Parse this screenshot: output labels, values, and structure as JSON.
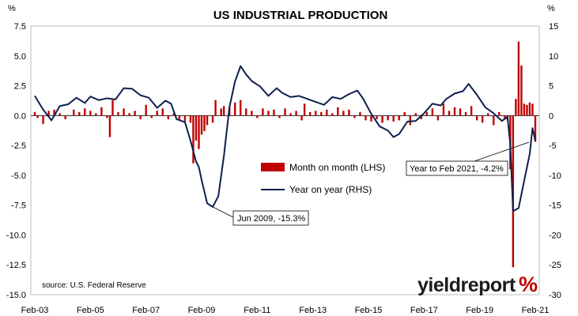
{
  "chart_data": {
    "type": "bar+line",
    "title": "US INDUSTRIAL PRODUCTION",
    "y_left": {
      "unit": "%",
      "ylim": [
        -15,
        7.5
      ],
      "ticks": [
        "7.5",
        "5.0",
        "2.5",
        "0.0",
        "-2.5",
        "-5.0",
        "-7.5",
        "-10.0",
        "-12.5",
        "-15.0"
      ]
    },
    "y_right": {
      "unit": "%",
      "ylim": [
        -30,
        15
      ],
      "ticks": [
        "15",
        "10",
        "5",
        "0",
        "-5",
        "-10",
        "-15",
        "-20",
        "-25",
        "-30"
      ]
    },
    "x_ticks": [
      "Feb-03",
      "Feb-05",
      "Feb-07",
      "Feb-09",
      "Feb-11",
      "Feb-13",
      "Feb-15",
      "Feb-17",
      "Feb-19",
      "Feb-21"
    ],
    "x_range": [
      "2003-02",
      "2021-02"
    ],
    "series": [
      {
        "name": "Month on month (LHS)",
        "type": "bar",
        "axis": "left",
        "color": "#c00000",
        "values": [
          [
            2003.1,
            0.3
          ],
          [
            2003.2,
            -0.2
          ],
          [
            2003.4,
            -0.7
          ],
          [
            2003.6,
            0.4
          ],
          [
            2003.8,
            0.5
          ],
          [
            2004.0,
            0.2
          ],
          [
            2004.2,
            -0.3
          ],
          [
            2004.5,
            0.5
          ],
          [
            2004.7,
            0.3
          ],
          [
            2004.9,
            0.6
          ],
          [
            2005.1,
            0.4
          ],
          [
            2005.3,
            0.2
          ],
          [
            2005.5,
            0.7
          ],
          [
            2005.7,
            -0.2
          ],
          [
            2005.8,
            -1.8
          ],
          [
            2005.9,
            1.3
          ],
          [
            2006.1,
            0.3
          ],
          [
            2006.3,
            0.6
          ],
          [
            2006.5,
            0.2
          ],
          [
            2006.7,
            0.4
          ],
          [
            2006.9,
            -0.3
          ],
          [
            2007.1,
            0.9
          ],
          [
            2007.3,
            -0.2
          ],
          [
            2007.5,
            0.4
          ],
          [
            2007.7,
            0.6
          ],
          [
            2007.9,
            -0.3
          ],
          [
            2008.1,
            0.2
          ],
          [
            2008.3,
            -0.4
          ],
          [
            2008.5,
            -0.5
          ],
          [
            2008.7,
            -0.6
          ],
          [
            2008.8,
            -4.0
          ],
          [
            2008.9,
            -2.1
          ],
          [
            2009.0,
            -2.8
          ],
          [
            2009.1,
            -1.6
          ],
          [
            2009.2,
            -1.3
          ],
          [
            2009.3,
            -0.8
          ],
          [
            2009.5,
            -0.6
          ],
          [
            2009.6,
            1.3
          ],
          [
            2009.8,
            0.6
          ],
          [
            2009.9,
            0.8
          ],
          [
            2010.1,
            0.7
          ],
          [
            2010.3,
            1.1
          ],
          [
            2010.5,
            1.3
          ],
          [
            2010.7,
            0.6
          ],
          [
            2010.9,
            0.4
          ],
          [
            2011.1,
            -0.2
          ],
          [
            2011.3,
            0.6
          ],
          [
            2011.5,
            0.4
          ],
          [
            2011.7,
            0.5
          ],
          [
            2011.9,
            -0.2
          ],
          [
            2012.1,
            0.6
          ],
          [
            2012.3,
            0.2
          ],
          [
            2012.5,
            0.4
          ],
          [
            2012.7,
            -0.4
          ],
          [
            2012.8,
            1.0
          ],
          [
            2013.0,
            0.3
          ],
          [
            2013.2,
            0.4
          ],
          [
            2013.4,
            0.3
          ],
          [
            2013.6,
            0.5
          ],
          [
            2013.8,
            0.2
          ],
          [
            2014.0,
            0.7
          ],
          [
            2014.2,
            0.4
          ],
          [
            2014.4,
            0.5
          ],
          [
            2014.6,
            -0.2
          ],
          [
            2014.8,
            0.3
          ],
          [
            2015.0,
            -0.4
          ],
          [
            2015.2,
            -0.5
          ],
          [
            2015.4,
            -0.3
          ],
          [
            2015.6,
            -0.6
          ],
          [
            2015.8,
            -0.4
          ],
          [
            2016.0,
            -0.5
          ],
          [
            2016.2,
            -0.4
          ],
          [
            2016.4,
            0.3
          ],
          [
            2016.6,
            -0.8
          ],
          [
            2016.8,
            0.2
          ],
          [
            2017.0,
            -0.3
          ],
          [
            2017.2,
            0.3
          ],
          [
            2017.4,
            0.6
          ],
          [
            2017.6,
            -0.4
          ],
          [
            2017.8,
            1.0
          ],
          [
            2018.0,
            0.4
          ],
          [
            2018.2,
            0.7
          ],
          [
            2018.4,
            0.6
          ],
          [
            2018.6,
            0.3
          ],
          [
            2018.8,
            0.8
          ],
          [
            2019.0,
            -0.4
          ],
          [
            2019.2,
            -0.6
          ],
          [
            2019.4,
            0.2
          ],
          [
            2019.6,
            -0.8
          ],
          [
            2019.8,
            0.3
          ],
          [
            2020.0,
            -0.3
          ],
          [
            2020.1,
            -0.4
          ],
          [
            2020.2,
            -4.5
          ],
          [
            2020.3,
            -12.7
          ],
          [
            2020.4,
            1.4
          ],
          [
            2020.5,
            6.2
          ],
          [
            2020.6,
            4.2
          ],
          [
            2020.7,
            1.0
          ],
          [
            2020.8,
            0.9
          ],
          [
            2020.9,
            1.1
          ],
          [
            2021.0,
            1.0
          ],
          [
            2021.1,
            -2.2
          ]
        ]
      },
      {
        "name": "Year on year (RHS)",
        "type": "line",
        "axis": "right",
        "color": "#0d1f4d",
        "values": [
          [
            2003.1,
            3.3
          ],
          [
            2003.4,
            1.0
          ],
          [
            2003.7,
            -0.8
          ],
          [
            2004.0,
            1.6
          ],
          [
            2004.3,
            1.9
          ],
          [
            2004.6,
            3.0
          ],
          [
            2004.9,
            2.1
          ],
          [
            2005.1,
            3.2
          ],
          [
            2005.4,
            2.6
          ],
          [
            2005.7,
            2.9
          ],
          [
            2006.0,
            2.7
          ],
          [
            2006.3,
            4.6
          ],
          [
            2006.6,
            4.5
          ],
          [
            2006.9,
            3.4
          ],
          [
            2007.2,
            3.0
          ],
          [
            2007.5,
            1.3
          ],
          [
            2007.8,
            2.5
          ],
          [
            2008.0,
            2.0
          ],
          [
            2008.2,
            -0.6
          ],
          [
            2008.5,
            -1.1
          ],
          [
            2008.7,
            -4.2
          ],
          [
            2008.9,
            -7.7
          ],
          [
            2009.0,
            -8.6
          ],
          [
            2009.1,
            -10.8
          ],
          [
            2009.3,
            -14.7
          ],
          [
            2009.5,
            -15.3
          ],
          [
            2009.7,
            -13.5
          ],
          [
            2009.9,
            -6.8
          ],
          [
            2010.1,
            1.4
          ],
          [
            2010.3,
            5.7
          ],
          [
            2010.5,
            8.3
          ],
          [
            2010.7,
            6.9
          ],
          [
            2010.9,
            5.8
          ],
          [
            2011.2,
            4.9
          ],
          [
            2011.5,
            3.3
          ],
          [
            2011.8,
            4.6
          ],
          [
            2012.0,
            3.8
          ],
          [
            2012.3,
            3.1
          ],
          [
            2012.6,
            3.3
          ],
          [
            2012.9,
            2.8
          ],
          [
            2013.2,
            2.3
          ],
          [
            2013.5,
            1.8
          ],
          [
            2013.8,
            3.1
          ],
          [
            2014.1,
            2.8
          ],
          [
            2014.4,
            3.6
          ],
          [
            2014.7,
            4.2
          ],
          [
            2014.9,
            2.9
          ],
          [
            2015.2,
            0.3
          ],
          [
            2015.5,
            -1.8
          ],
          [
            2015.8,
            -2.5
          ],
          [
            2016.0,
            -3.6
          ],
          [
            2016.2,
            -3.1
          ],
          [
            2016.5,
            -1.0
          ],
          [
            2016.8,
            -0.9
          ],
          [
            2017.1,
            0.4
          ],
          [
            2017.4,
            2.0
          ],
          [
            2017.7,
            1.7
          ],
          [
            2017.9,
            2.8
          ],
          [
            2018.2,
            3.7
          ],
          [
            2018.5,
            4.1
          ],
          [
            2018.7,
            5.3
          ],
          [
            2019.0,
            3.5
          ],
          [
            2019.3,
            1.4
          ],
          [
            2019.6,
            0.4
          ],
          [
            2019.9,
            -0.9
          ],
          [
            2020.1,
            -0.2
          ],
          [
            2020.2,
            -4.8
          ],
          [
            2020.3,
            -16.0
          ],
          [
            2020.5,
            -15.5
          ],
          [
            2020.7,
            -10.9
          ],
          [
            2020.9,
            -6.4
          ],
          [
            2021.0,
            -2.1
          ],
          [
            2021.1,
            -4.2
          ]
        ]
      }
    ],
    "annotations": [
      {
        "text": "Jun 2009, -15.3%",
        "x": 2009.5,
        "y": -15.3,
        "axis": "right"
      },
      {
        "text": "Year to Feb 2021, -4.2%",
        "x": 2021.1,
        "y": -4.2,
        "axis": "right"
      }
    ],
    "legend_position": "center",
    "source": "source: U.S. Federal Reserve",
    "grid": false
  },
  "logo": {
    "text": "yieldreport",
    "symbol": "%",
    "symbol_colors": [
      "#c00000",
      "#4a8a2c"
    ]
  }
}
